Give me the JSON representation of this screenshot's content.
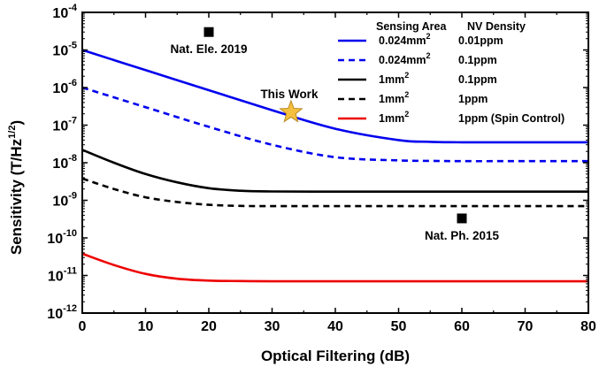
{
  "chart_data": {
    "type": "line",
    "xlabel": "Optical Filtering (dB)",
    "ylabel": "Sensitivity (T/Hz",
    "ylabel_sup": "1/2",
    "ylabel_close": ")",
    "xlim": [
      0,
      80
    ],
    "ylim_log10": [
      -12,
      -4
    ],
    "y_scale": "log",
    "x_ticks": [
      0,
      10,
      20,
      30,
      40,
      50,
      60,
      70,
      80
    ],
    "y_ticks": [
      {
        "exp": -4,
        "base": "10",
        "sup": "-4"
      },
      {
        "exp": -5,
        "base": "10",
        "sup": "-5"
      },
      {
        "exp": -6,
        "base": "10",
        "sup": "-6"
      },
      {
        "exp": -7,
        "base": "10",
        "sup": "-7"
      },
      {
        "exp": -8,
        "base": "10",
        "sup": "-8"
      },
      {
        "exp": -9,
        "base": "10",
        "sup": "-9"
      },
      {
        "exp": -10,
        "base": "10",
        "sup": "-10"
      },
      {
        "exp": -11,
        "base": "10",
        "sup": "-11"
      },
      {
        "exp": -12,
        "base": "10",
        "sup": "-12"
      }
    ],
    "legend": {
      "header_area": "Sensing Area",
      "header_density": "NV Density",
      "placement": "top-right"
    },
    "series": [
      {
        "area": "0.024mm",
        "area_sup": "2",
        "density": "0.01ppm",
        "color": "#0000ee",
        "dash": "solid",
        "x": [
          0,
          10,
          20,
          30,
          40,
          50,
          55,
          60,
          70,
          80
        ],
        "y": [
          1e-05,
          2.9e-06,
          8.5e-07,
          2.5e-07,
          8e-08,
          4e-08,
          3.6e-08,
          3.5e-08,
          3.5e-08,
          3.5e-08
        ]
      },
      {
        "area": "0.024mm",
        "area_sup": "2",
        "density": "0.1ppm",
        "color": "#0000ee",
        "dash": "dashed",
        "x": [
          0,
          10,
          20,
          30,
          40,
          50,
          55,
          60,
          70,
          80
        ],
        "y": [
          1e-06,
          3e-07,
          9e-08,
          3e-08,
          1.4e-08,
          1.15e-08,
          1.12e-08,
          1.1e-08,
          1.1e-08,
          1.1e-08
        ]
      },
      {
        "area": "1mm",
        "area_sup": "2",
        "density": "0.1ppm",
        "color": "#000000",
        "dash": "solid",
        "x": [
          0,
          5,
          10,
          15,
          20,
          25,
          30,
          40,
          50,
          60,
          70,
          80
        ],
        "y": [
          2.2e-08,
          1e-08,
          5e-09,
          3e-09,
          2.1e-09,
          1.8e-09,
          1.72e-09,
          1.7e-09,
          1.7e-09,
          1.7e-09,
          1.7e-09,
          1.7e-09
        ]
      },
      {
        "area": "1mm",
        "area_sup": "2",
        "density": "1ppm",
        "color": "#000000",
        "dash": "dashed",
        "x": [
          0,
          5,
          10,
          15,
          20,
          25,
          30,
          40,
          50,
          60,
          70,
          80
        ],
        "y": [
          3.8e-09,
          2e-09,
          1.2e-09,
          9e-10,
          7.6e-10,
          7.1e-10,
          7e-10,
          7e-10,
          7e-10,
          7e-10,
          7e-10,
          7e-10
        ]
      },
      {
        "area": "1mm",
        "area_sup": "2",
        "density": "1ppm  (Spin Control)",
        "color": "#ee0000",
        "dash": "solid",
        "x": [
          0,
          5,
          10,
          15,
          20,
          25,
          30,
          40,
          50,
          60,
          70,
          80
        ],
        "y": [
          3.8e-11,
          1.9e-11,
          1.1e-11,
          8.2e-12,
          7.3e-12,
          7.1e-12,
          7e-12,
          7e-12,
          7e-12,
          7e-12,
          7e-12,
          7e-12
        ]
      }
    ],
    "points": [
      {
        "label": "Nat. Ele. 2019",
        "x": 20,
        "y": 3e-05,
        "marker": "square",
        "color": "#000000"
      },
      {
        "label": "Nat. Ph. 2015",
        "x": 60,
        "y": 3.3e-10,
        "marker": "square",
        "color": "#000000"
      },
      {
        "label": "This Work",
        "x": 33,
        "y": 2.2e-07,
        "marker": "star",
        "color": "#f5c040"
      }
    ]
  }
}
